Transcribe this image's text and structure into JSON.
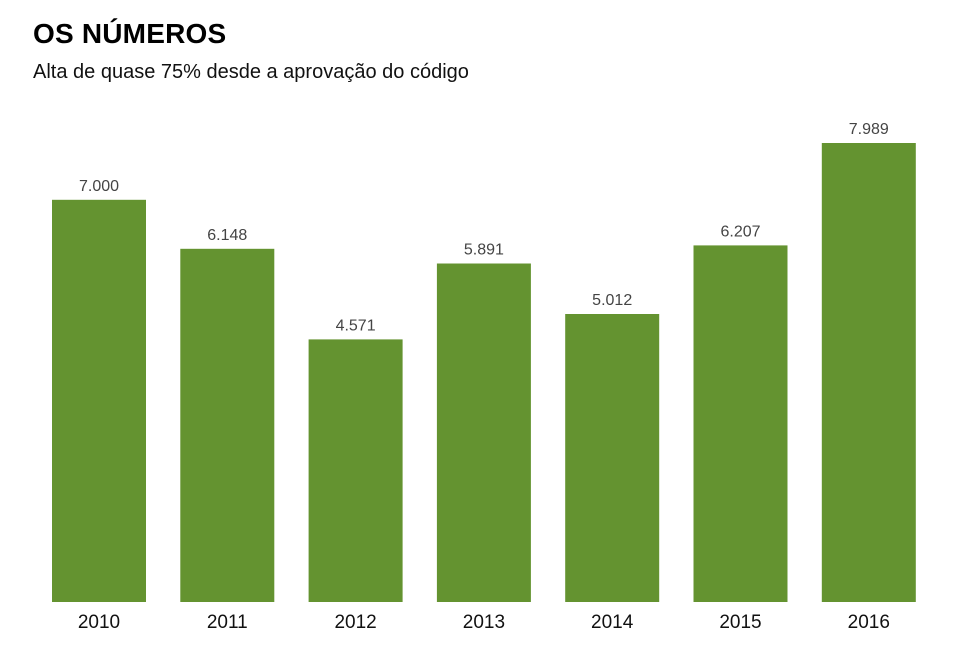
{
  "header": {
    "title": "OS NÚMEROS",
    "subtitle": "Alta de quase 75% desde a aprovação do código"
  },
  "colors": {
    "bar": "#649330",
    "value_label": "#444444",
    "tick_label": "#111111"
  },
  "chart_data": {
    "type": "bar",
    "title": "OS NÚMEROS",
    "subtitle": "Alta de quase 75% desde a aprovação do código",
    "categories": [
      "2010",
      "2011",
      "2012",
      "2013",
      "2014",
      "2015",
      "2016"
    ],
    "values": [
      7000,
      6148,
      4571,
      5891,
      5012,
      6207,
      7989
    ],
    "value_labels": [
      "7.000",
      "6.148",
      "4.571",
      "5.891",
      "5.012",
      "6.207",
      "7.989"
    ],
    "xlabel": "",
    "ylabel": "",
    "ylim": [
      0,
      7989
    ],
    "grid": false,
    "legend": "none"
  }
}
